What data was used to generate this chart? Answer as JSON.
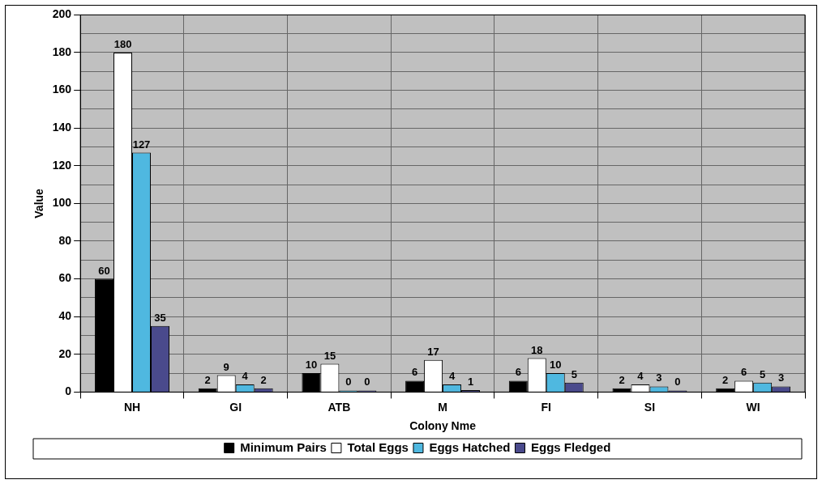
{
  "chart_data": {
    "type": "bar",
    "xlabel": "Colony Nme",
    "ylabel": "Value",
    "categories": [
      "NH",
      "GI",
      "ATB",
      "M",
      "FI",
      "SI",
      "WI"
    ],
    "series": [
      {
        "name": "Minimum Pairs",
        "color": "#000000",
        "values": [
          60,
          2,
          10,
          6,
          6,
          2,
          2
        ]
      },
      {
        "name": "Total Eggs",
        "color": "#ffffff",
        "values": [
          180,
          9,
          15,
          17,
          18,
          4,
          6
        ]
      },
      {
        "name": "Eggs Hatched",
        "color": "#4fb8e0",
        "values": [
          127,
          4,
          0,
          4,
          10,
          3,
          5
        ]
      },
      {
        "name": "Eggs Fledged",
        "color": "#4a4a8c",
        "values": [
          35,
          2,
          0,
          1,
          5,
          0,
          3
        ]
      }
    ],
    "ylim": [
      0,
      200
    ],
    "yticks": [
      0,
      {
        "value": 10,
        "label": null
      },
      20,
      {
        "value": 30,
        "label": null
      },
      40,
      {
        "value": 50,
        "label": null
      },
      60,
      {
        "value": 70,
        "label": null
      },
      80,
      {
        "value": 90,
        "label": null
      },
      100,
      {
        "value": 110,
        "label": null
      },
      120,
      {
        "value": 130,
        "label": null
      },
      140,
      {
        "value": 150,
        "label": null
      },
      160,
      {
        "value": 170,
        "label": null
      },
      180,
      {
        "value": 190,
        "label": null
      },
      200
    ],
    "grid": true,
    "legend": "bottom",
    "data_labels": true
  }
}
